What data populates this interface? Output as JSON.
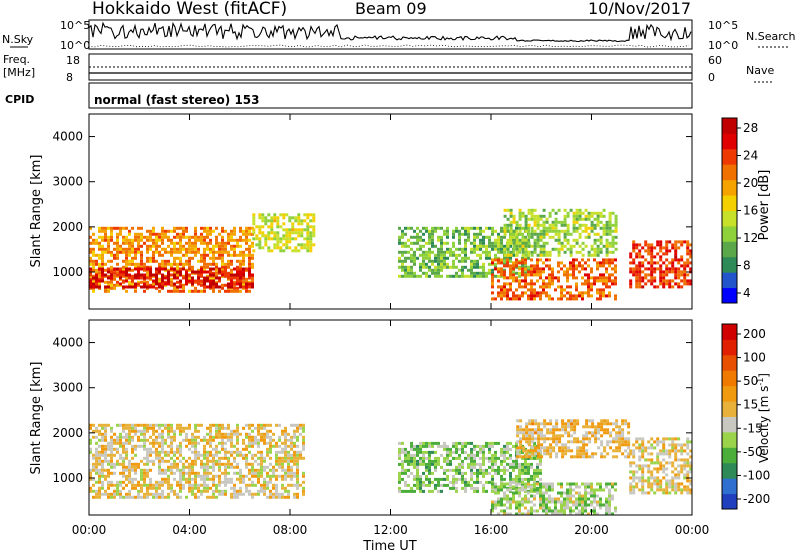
{
  "header": {
    "title": "Hokkaido West (fitACF)",
    "beam": "Beam 09",
    "date": "10/Nov/2017"
  },
  "strips": {
    "nsky_label": "N.Sky",
    "nsky_ticks": [
      "10^5",
      "10^0"
    ],
    "nsearch_label": "N.Search",
    "nsearch_ticks": [
      "10^5",
      "10^0"
    ],
    "freq_label": "Freq.",
    "freq_unit": "[MHz]",
    "freq_ticks": [
      "18",
      "8"
    ],
    "nave_label": "Nave",
    "nave_ticks": [
      "60",
      "0"
    ],
    "cpid_label": "CPID",
    "cpid_text": "normal (fast stereo) 153"
  },
  "time_axis": {
    "label": "Time UT",
    "ticks": [
      "00:00",
      "04:00",
      "08:00",
      "12:00",
      "16:00",
      "20:00",
      "00:00"
    ]
  },
  "range_axis": {
    "label": "Slant Range [km]",
    "ticks": [
      "1000",
      "2000",
      "3000",
      "4000"
    ]
  },
  "power_colorbar": {
    "label": "Power [dB]",
    "ticks": [
      "28",
      "24",
      "20",
      "16",
      "12",
      "8",
      "4"
    ],
    "colors": [
      "#0000ff",
      "#2255cc",
      "#2e8b57",
      "#5aa84a",
      "#8fd13a",
      "#c7e02a",
      "#f5d000",
      "#f5a300",
      "#f07000",
      "#ee3a00",
      "#e00000",
      "#c00000"
    ]
  },
  "velocity_colorbar": {
    "label": "Velocity [m s",
    "label_sup": "-1",
    "label_end": "]",
    "ticks": [
      "200",
      "100",
      "50",
      "15",
      "-15",
      "-50",
      "-100",
      "-200"
    ],
    "colors": [
      "#1f3fbf",
      "#2f6fd0",
      "#2e8b57",
      "#4cae3a",
      "#9bd44a",
      "#c8c8c0",
      "#e8b23a",
      "#f09a10",
      "#f07a00",
      "#e85000",
      "#e02000",
      "#d00000"
    ]
  },
  "chart_data": {
    "type": "heatmap",
    "x_range_hours": [
      0,
      24
    ],
    "y_range_km": [
      180,
      4500
    ],
    "panels": [
      {
        "name": "power",
        "unit": "dB",
        "range": [
          0,
          30
        ],
        "regions": [
          {
            "t0": 0,
            "t1": 6.5,
            "r0": 600,
            "r1": 2000,
            "level": 20
          },
          {
            "t0": 0,
            "t1": 6.5,
            "r0": 700,
            "r1": 1100,
            "level": 27
          },
          {
            "t0": 6.5,
            "t1": 9,
            "r0": 1500,
            "r1": 2300,
            "level": 14
          },
          {
            "t0": 12.3,
            "t1": 17.5,
            "r0": 900,
            "r1": 2000,
            "level": 10
          },
          {
            "t0": 16,
            "t1": 21,
            "r0": 400,
            "r1": 1300,
            "level": 22
          },
          {
            "t0": 16.5,
            "t1": 21,
            "r0": 1400,
            "r1": 2400,
            "level": 12
          },
          {
            "t0": 21.5,
            "t1": 24,
            "r0": 700,
            "r1": 1700,
            "level": 24
          }
        ]
      },
      {
        "name": "velocity",
        "unit": "m/s",
        "range": [
          -200,
          200
        ],
        "regions": [
          {
            "t0": 0,
            "t1": 8.5,
            "r0": 600,
            "r1": 2200,
            "level": 0
          },
          {
            "t0": 12.3,
            "t1": 18,
            "r0": 700,
            "r1": 1800,
            "level": -60
          },
          {
            "t0": 16,
            "t1": 21,
            "r0": 200,
            "r1": 900,
            "level": -40
          },
          {
            "t0": 17,
            "t1": 21.5,
            "r0": 1500,
            "r1": 2300,
            "level": 20
          },
          {
            "t0": 21.5,
            "t1": 24,
            "r0": 700,
            "r1": 1900,
            "level": 0
          }
        ]
      }
    ]
  }
}
